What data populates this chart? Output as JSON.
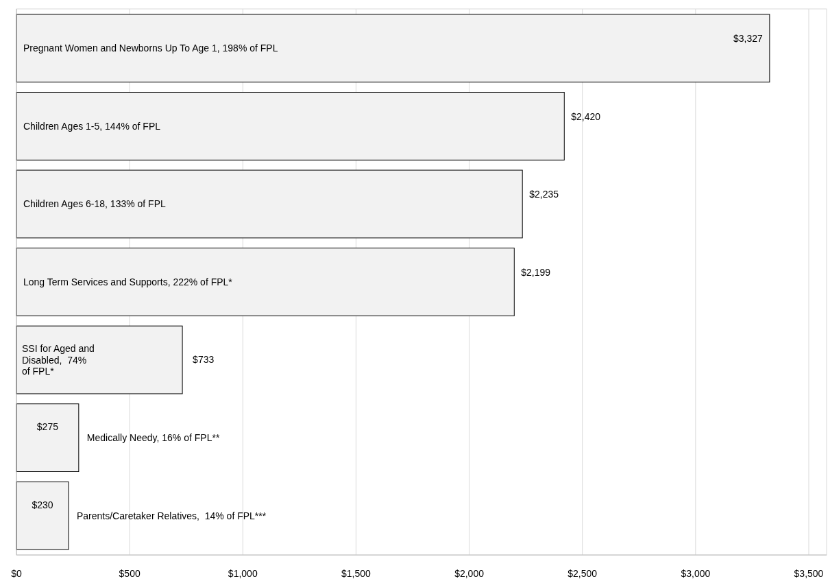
{
  "chart_data": {
    "type": "bar",
    "orientation": "horizontal",
    "categories": [
      "Pregnant Women and Newborns Up To Age 1, 198% of FPL",
      "Children Ages 1-5, 144% of FPL",
      "Children Ages 6-18, 133% of FPL",
      "Long Term Services and Supports, 222% of FPL*",
      "SSI for Aged and Disabled,  74% of FPL*",
      "Medically Needy, 16% of FPL**",
      "Parents/Caretaker Relatives,  14% of FPL***"
    ],
    "values": [
      3327,
      2420,
      2235,
      2199,
      733,
      275,
      230
    ],
    "value_labels": [
      "$3,327",
      "$2,420",
      "$2,235",
      "$2,199",
      "$733",
      "$275",
      "$230"
    ],
    "color": "#f2f2f2",
    "xlim": [
      0,
      3500
    ],
    "xticks": [
      {
        "value": 0,
        "label": "$0"
      },
      {
        "value": 500,
        "label": "$500"
      },
      {
        "value": 1000,
        "label": "$1,000"
      },
      {
        "value": 1500,
        "label": "$1,500"
      },
      {
        "value": 2000,
        "label": "$2,000"
      },
      {
        "value": 2500,
        "label": "$2,500"
      },
      {
        "value": 3000,
        "label": "$3,000"
      },
      {
        "value": 3500,
        "label": "$3,500"
      }
    ],
    "grid": "x"
  }
}
